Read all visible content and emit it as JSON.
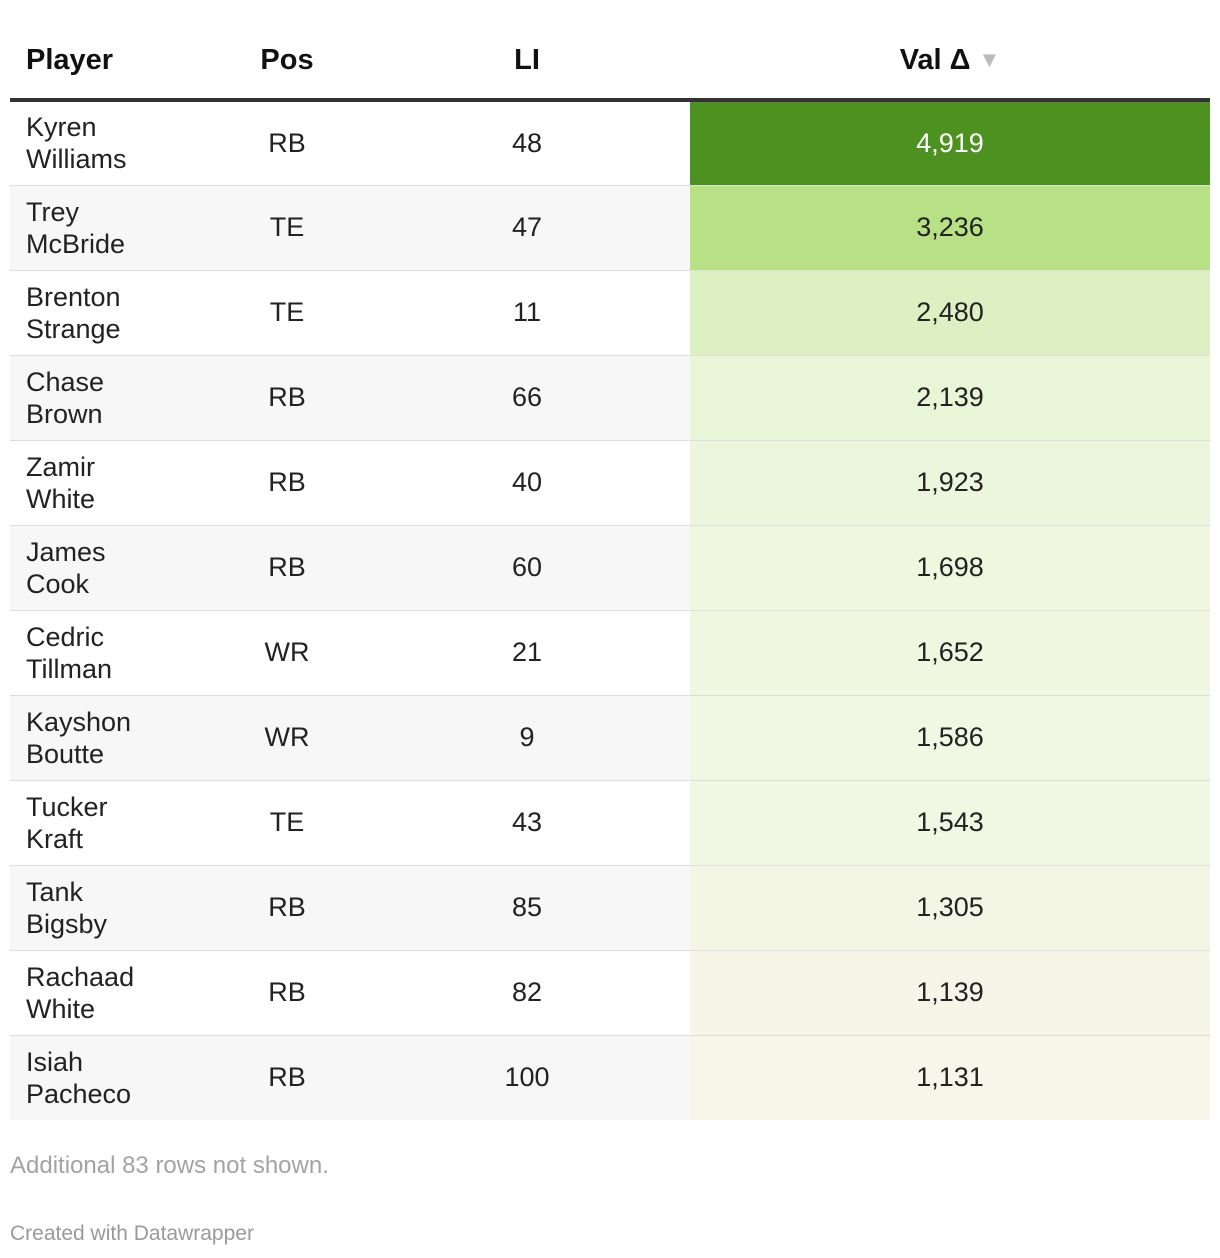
{
  "chart_data": {
    "type": "table",
    "columns": [
      "Player",
      "Pos",
      "LI",
      "Val Δ"
    ],
    "sort_indicator": "▼",
    "rows": [
      {
        "player": [
          "Kyren",
          "Williams"
        ],
        "pos": "RB",
        "li": "48",
        "val": "4,919",
        "bg": "#4d9221",
        "fg": "#ffffff"
      },
      {
        "player": [
          "Trey",
          "McBride"
        ],
        "pos": "TE",
        "li": "47",
        "val": "3,236",
        "bg": "#b8e186",
        "fg": "#222222"
      },
      {
        "player": [
          "Brenton",
          "Strange"
        ],
        "pos": "TE",
        "li": "11",
        "val": "2,480",
        "bg": "#dcf0c2",
        "fg": "#222222"
      },
      {
        "player": [
          "Chase",
          "Brown"
        ],
        "pos": "RB",
        "li": "66",
        "val": "2,139",
        "bg": "#e8f5d7",
        "fg": "#222222"
      },
      {
        "player": [
          "Zamir",
          "White"
        ],
        "pos": "RB",
        "li": "40",
        "val": "1,923",
        "bg": "#ecf6dd",
        "fg": "#222222"
      },
      {
        "player": [
          "James",
          "Cook"
        ],
        "pos": "RB",
        "li": "60",
        "val": "1,698",
        "bg": "#eff7df",
        "fg": "#222222"
      },
      {
        "player": [
          "Cedric",
          "Tillman"
        ],
        "pos": "WR",
        "li": "21",
        "val": "1,652",
        "bg": "#f0f7e1",
        "fg": "#222222"
      },
      {
        "player": [
          "Kayshon",
          "Boutte"
        ],
        "pos": "WR",
        "li": "9",
        "val": "1,586",
        "bg": "#f0f7e2",
        "fg": "#222222"
      },
      {
        "player": [
          "Tucker",
          "Kraft"
        ],
        "pos": "TE",
        "li": "43",
        "val": "1,543",
        "bg": "#f1f7e3",
        "fg": "#222222"
      },
      {
        "player": [
          "Tank",
          "Bigsby"
        ],
        "pos": "RB",
        "li": "85",
        "val": "1,305",
        "bg": "#f3f6e5",
        "fg": "#222222"
      },
      {
        "player": [
          "Rachaad",
          "White"
        ],
        "pos": "RB",
        "li": "82",
        "val": "1,139",
        "bg": "#f5f6e8",
        "fg": "#222222"
      },
      {
        "player": [
          "Isiah",
          "Pacheco"
        ],
        "pos": "RB",
        "li": "100",
        "val": "1,131",
        "bg": "#f6f6e9",
        "fg": "#222222"
      }
    ],
    "footnote": "Additional 83 rows not shown.",
    "credit": "Created with Datawrapper"
  }
}
